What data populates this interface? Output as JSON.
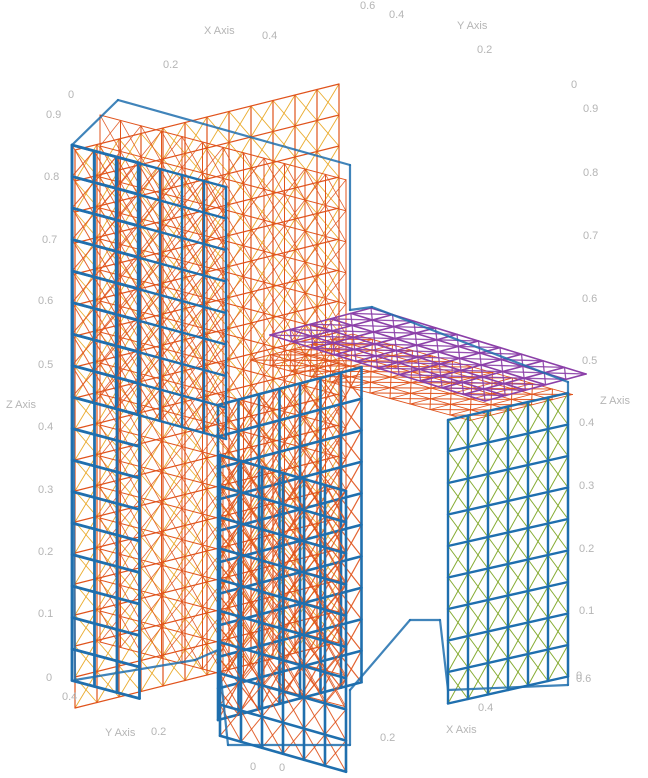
{
  "axes": {
    "x_axis_title": "X Axis",
    "y_axis_title": "Y Axis",
    "z_axis_title": "Z Axis",
    "top_ticks": [
      "0",
      "0.2",
      "0.4",
      "0.6",
      "0.4",
      "0.2",
      "0"
    ],
    "z_ticks_left": [
      "0",
      "0.1",
      "0.2",
      "0.3",
      "0.4",
      "0.5",
      "0.6",
      "0.7",
      "0.8",
      "0.9"
    ],
    "z_ticks_right": [
      "0",
      "0.1",
      "0.2",
      "0.3",
      "0.4",
      "0.5",
      "0.6",
      "0.7",
      "0.8",
      "0.9"
    ],
    "bottom_ticks": [
      "0.4",
      "0.2",
      "0",
      "0",
      "0.2",
      "0.4",
      "0.6"
    ]
  },
  "colors": {
    "frame_blue": "#1f6fae",
    "orange": "#e0531c",
    "gold": "#e8a318",
    "purple": "#8b3fa8",
    "green": "#7aa31e",
    "axis_text": "#b5b5b5"
  }
}
